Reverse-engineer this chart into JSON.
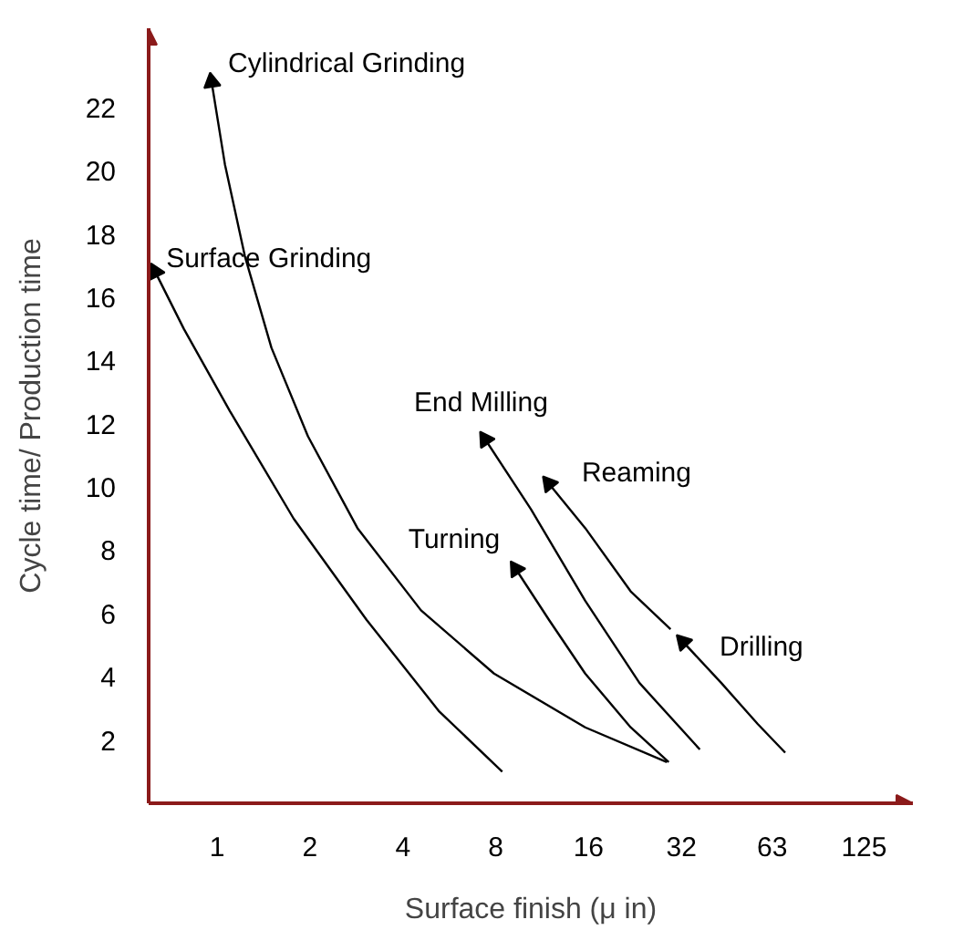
{
  "chart_data": {
    "type": "line",
    "xlabel": "Surface finish (μ in)",
    "ylabel": "Cycle time/ Production time",
    "log": "x",
    "xlim": [
      0.6,
      180
    ],
    "ylim": [
      0,
      24.5
    ],
    "xticks": [
      1,
      2,
      4,
      8,
      16,
      32,
      63,
      125
    ],
    "yticks": [
      2,
      4,
      6,
      8,
      10,
      12,
      14,
      16,
      18,
      20,
      22
    ],
    "grid": false,
    "line_style": "solid",
    "series": [
      {
        "name": "Cylindrical Grinding",
        "color": "#000000",
        "x": [
          0.96,
          1.06,
          1.23,
          1.5,
          1.97,
          2.85,
          4.58,
          7.9,
          15.6,
          28.7
        ],
        "values": [
          22.8,
          20.2,
          17.3,
          14.4,
          11.6,
          8.7,
          6.1,
          4.1,
          2.4,
          1.3
        ]
      },
      {
        "name": "Surface Grinding",
        "color": "#000000",
        "x": [
          0.63,
          0.78,
          1.1,
          1.77,
          3.05,
          5.25,
          8.4
        ],
        "values": [
          16.8,
          15.0,
          12.4,
          9.0,
          5.8,
          2.9,
          1.0
        ]
      },
      {
        "name": "End Milling",
        "color": "#000000",
        "x": [
          7.4,
          10.4,
          15.6,
          23.4,
          36.7
        ],
        "values": [
          11.5,
          9.3,
          6.4,
          3.8,
          1.7
        ]
      },
      {
        "name": "Reaming",
        "color": "#000000",
        "x": [
          11.9,
          15.6,
          21.9,
          29.5
        ],
        "values": [
          10.1,
          8.7,
          6.7,
          5.5
        ]
      },
      {
        "name": "Turning",
        "color": "#000000",
        "x": [
          9.3,
          11.9,
          15.6,
          21.9,
          29.1
        ],
        "values": [
          7.4,
          5.8,
          4.1,
          2.4,
          1.3
        ]
      },
      {
        "name": "Drilling",
        "color": "#000000",
        "x": [
          32.4,
          43.1,
          56.6,
          69.4
        ],
        "values": [
          5.1,
          3.8,
          2.5,
          1.6
        ]
      }
    ]
  }
}
